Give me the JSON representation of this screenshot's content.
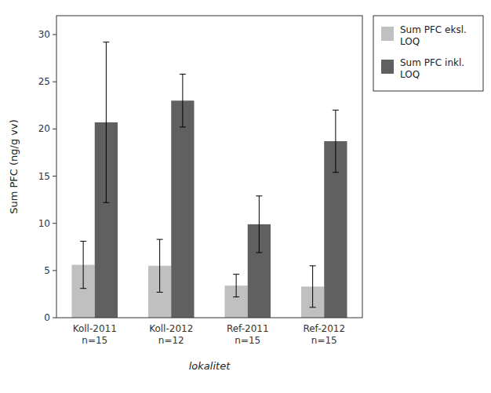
{
  "chart_data": {
    "type": "bar",
    "categories": [
      "Koll-2011\nn=15",
      "Koll-2012\nn=12",
      "Ref-2011\nn=15",
      "Ref-2012\nn=15"
    ],
    "series": [
      {
        "name": "Sum PFC eksl.\nLOQ",
        "color": "#c0c0c0",
        "values": [
          5.6,
          5.5,
          3.4,
          3.3
        ],
        "errors": [
          2.5,
          2.8,
          1.2,
          2.2
        ]
      },
      {
        "name": "Sum PFC inkl.\nLOQ",
        "color": "#606060",
        "values": [
          20.7,
          23.0,
          9.9,
          18.7
        ],
        "errors": [
          8.5,
          2.8,
          3.0,
          3.3
        ]
      }
    ],
    "xlabel": "lokalitet",
    "ylabel": "Sum PFC (ng/g vv)",
    "ylim": [
      0,
      32
    ],
    "yticks": [
      0,
      5,
      10,
      15,
      20,
      25,
      30
    ],
    "grid": false,
    "legend": "right"
  }
}
